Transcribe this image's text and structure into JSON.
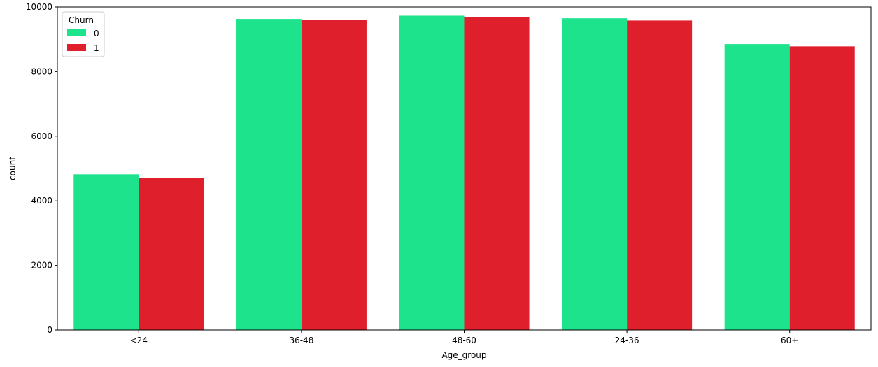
{
  "chart_data": {
    "type": "bar",
    "title": "",
    "xlabel": "Age_group",
    "ylabel": "count",
    "categories": [
      "<24",
      "36-48",
      "48-60",
      "24-36",
      "60+"
    ],
    "series": [
      {
        "name": "0",
        "color": "#1de38c",
        "values": [
          4820,
          9630,
          9730,
          9650,
          8850
        ]
      },
      {
        "name": "1",
        "color": "#e01f2d",
        "values": [
          4710,
          9610,
          9690,
          9580,
          8780
        ]
      }
    ],
    "ylim": [
      0,
      10000
    ],
    "yticks": [
      0,
      2000,
      4000,
      6000,
      8000,
      10000
    ],
    "legend": {
      "title": "Churn",
      "placement": "top-left"
    },
    "grid": false
  }
}
